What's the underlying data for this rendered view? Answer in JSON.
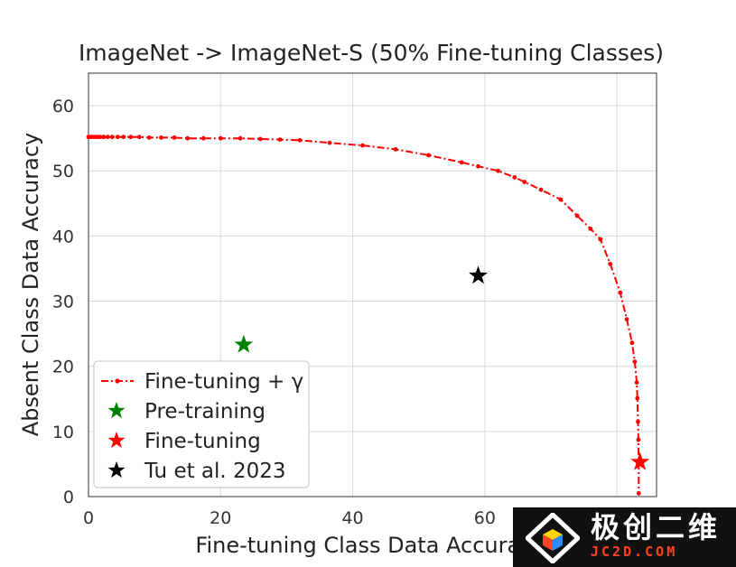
{
  "chart_data": {
    "type": "scatter",
    "title": "ImageNet -> ImageNet-S (50% Fine-tuning Classes)",
    "xlabel": "Fine-tuning Class Data Accuracy",
    "ylabel": "Absent Class Data Accuracy",
    "xlim": [
      0,
      86
    ],
    "ylim": [
      0,
      65
    ],
    "xticks": [
      0,
      20,
      40,
      60,
      80
    ],
    "yticks": [
      0,
      10,
      20,
      30,
      40,
      50,
      60
    ],
    "grid": true,
    "legend_position": "lower-left",
    "series": [
      {
        "name": "Fine-tuning + γ",
        "kind": "line",
        "color": "#ff0000",
        "x": [
          0.0,
          0.3,
          0.6,
          1.0,
          1.4,
          1.8,
          2.3,
          2.9,
          3.6,
          4.4,
          5.3,
          6.4,
          7.7,
          9.2,
          11.0,
          13.0,
          15.0,
          17.4,
          20.0,
          23.0,
          26.0,
          29.0,
          32.0,
          36.5,
          41.5,
          46.5,
          51.5,
          56.5,
          59.0,
          62.0,
          64.5,
          66.0,
          68.5,
          71.5,
          74.0,
          76.0,
          77.5,
          79.0,
          80.5,
          81.5,
          82.3,
          82.7,
          83.0,
          83.1,
          83.2,
          83.25,
          83.3,
          83.3
        ],
        "y": [
          55.2,
          55.2,
          55.2,
          55.2,
          55.2,
          55.2,
          55.2,
          55.2,
          55.2,
          55.2,
          55.2,
          55.2,
          55.2,
          55.1,
          55.1,
          55.1,
          55.0,
          55.0,
          55.0,
          55.0,
          54.9,
          54.8,
          54.7,
          54.3,
          53.9,
          53.3,
          52.4,
          51.3,
          50.7,
          50.0,
          49.0,
          48.3,
          47.1,
          45.6,
          43.1,
          41.1,
          39.5,
          35.7,
          31.3,
          27.2,
          23.6,
          20.7,
          17.5,
          15.1,
          11.5,
          8.7,
          5.4,
          0.5
        ]
      },
      {
        "name": "Pre-training",
        "kind": "star",
        "color": "#008000",
        "x": [
          23.5
        ],
        "y": [
          23.3
        ]
      },
      {
        "name": "Fine-tuning",
        "kind": "star",
        "color": "#ff0000",
        "x": [
          83.5
        ],
        "y": [
          5.3
        ]
      },
      {
        "name": "Tu et al. 2023",
        "kind": "star",
        "color": "#000000",
        "x": [
          59.0
        ],
        "y": [
          33.9
        ]
      }
    ]
  },
  "watermark": {
    "text_cn": "极创二维",
    "url": "JC2D.COM"
  }
}
